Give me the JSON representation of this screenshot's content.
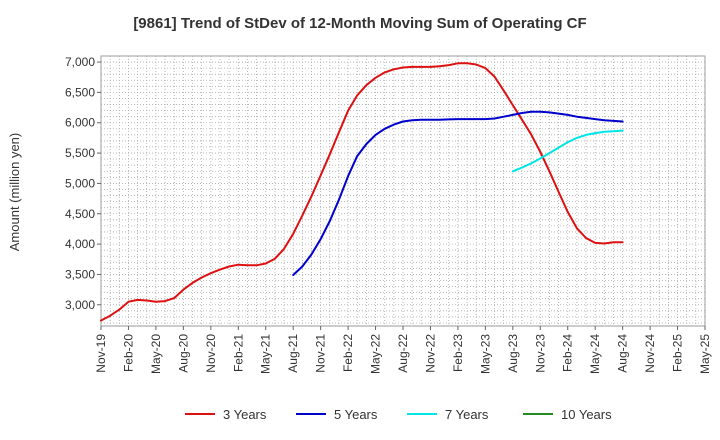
{
  "chart_data": {
    "type": "line",
    "title": "[9861]  Trend of StDev of 12-Month Moving Sum of Operating CF",
    "xlabel": "",
    "ylabel": "Amount (million yen)",
    "ylim": [
      2650,
      7100
    ],
    "yticks": [
      3000,
      3500,
      4000,
      4500,
      5000,
      5500,
      6000,
      6500,
      7000
    ],
    "ytick_labels": [
      "3,000",
      "3,500",
      "4,000",
      "4,500",
      "5,000",
      "5,500",
      "6,000",
      "6,500",
      "7,000"
    ],
    "x_range": [
      "2019-11",
      "2025-05"
    ],
    "xtick_labels": [
      "Nov-19",
      "Feb-20",
      "May-20",
      "Aug-20",
      "Nov-20",
      "Feb-21",
      "May-21",
      "Aug-21",
      "Nov-21",
      "Feb-22",
      "May-22",
      "Aug-22",
      "Nov-22",
      "Feb-23",
      "May-23",
      "Aug-23",
      "Nov-23",
      "Feb-24",
      "May-24",
      "Aug-24",
      "Nov-24",
      "Feb-25",
      "May-25"
    ],
    "grid": true,
    "legend_position": "bottom",
    "series": [
      {
        "name": "3 Years",
        "color": "#dd1111",
        "x": [
          "2019-11",
          "2019-12",
          "2020-01",
          "2020-02",
          "2020-03",
          "2020-04",
          "2020-05",
          "2020-06",
          "2020-07",
          "2020-08",
          "2020-09",
          "2020-10",
          "2020-11",
          "2020-12",
          "2021-01",
          "2021-02",
          "2021-03",
          "2021-04",
          "2021-05",
          "2021-06",
          "2021-07",
          "2021-08",
          "2021-09",
          "2021-10",
          "2021-11",
          "2021-12",
          "2022-01",
          "2022-02",
          "2022-03",
          "2022-04",
          "2022-05",
          "2022-06",
          "2022-07",
          "2022-08",
          "2022-09",
          "2022-10",
          "2022-11",
          "2022-12",
          "2023-01",
          "2023-02",
          "2023-03",
          "2023-04",
          "2023-05",
          "2023-06",
          "2023-07",
          "2023-08",
          "2023-09",
          "2023-10",
          "2023-11",
          "2023-12",
          "2024-01",
          "2024-02",
          "2024-03",
          "2024-04",
          "2024-05",
          "2024-06",
          "2024-07",
          "2024-08"
        ],
        "values": [
          2740,
          2820,
          2920,
          3050,
          3080,
          3070,
          3050,
          3060,
          3110,
          3250,
          3360,
          3450,
          3520,
          3580,
          3630,
          3660,
          3650,
          3650,
          3680,
          3760,
          3920,
          4170,
          4470,
          4790,
          5130,
          5480,
          5840,
          6200,
          6450,
          6620,
          6740,
          6830,
          6880,
          6910,
          6920,
          6920,
          6920,
          6930,
          6950,
          6980,
          6980,
          6960,
          6900,
          6760,
          6530,
          6290,
          6050,
          5810,
          5520,
          5200,
          4860,
          4530,
          4260,
          4100,
          4020,
          4010,
          4030,
          4030
        ]
      },
      {
        "name": "5 Years",
        "color": "#0000cc",
        "x": [
          "2021-08",
          "2021-09",
          "2021-10",
          "2021-11",
          "2021-12",
          "2022-01",
          "2022-02",
          "2022-03",
          "2022-04",
          "2022-05",
          "2022-06",
          "2022-07",
          "2022-08",
          "2022-09",
          "2022-10",
          "2022-11",
          "2022-12",
          "2023-01",
          "2023-02",
          "2023-03",
          "2023-04",
          "2023-05",
          "2023-06",
          "2023-07",
          "2023-08",
          "2023-09",
          "2023-10",
          "2023-11",
          "2023-12",
          "2024-01",
          "2024-02",
          "2024-03",
          "2024-04",
          "2024-05",
          "2024-06",
          "2024-07",
          "2024-08"
        ],
        "values": [
          3490,
          3630,
          3830,
          4080,
          4380,
          4730,
          5120,
          5450,
          5650,
          5800,
          5900,
          5970,
          6020,
          6040,
          6050,
          6050,
          6050,
          6055,
          6060,
          6060,
          6060,
          6060,
          6070,
          6100,
          6130,
          6160,
          6180,
          6180,
          6170,
          6150,
          6130,
          6100,
          6080,
          6060,
          6040,
          6030,
          6020
        ]
      },
      {
        "name": "7 Years",
        "color": "#00e5e5",
        "x": [
          "2023-08",
          "2023-09",
          "2023-10",
          "2023-11",
          "2023-12",
          "2024-01",
          "2024-02",
          "2024-03",
          "2024-04",
          "2024-05",
          "2024-06",
          "2024-07",
          "2024-08"
        ],
        "values": [
          5200,
          5260,
          5330,
          5410,
          5500,
          5590,
          5680,
          5750,
          5800,
          5830,
          5850,
          5860,
          5870
        ]
      },
      {
        "name": "10 Years",
        "color": "#228b22",
        "x": [],
        "values": []
      }
    ]
  }
}
